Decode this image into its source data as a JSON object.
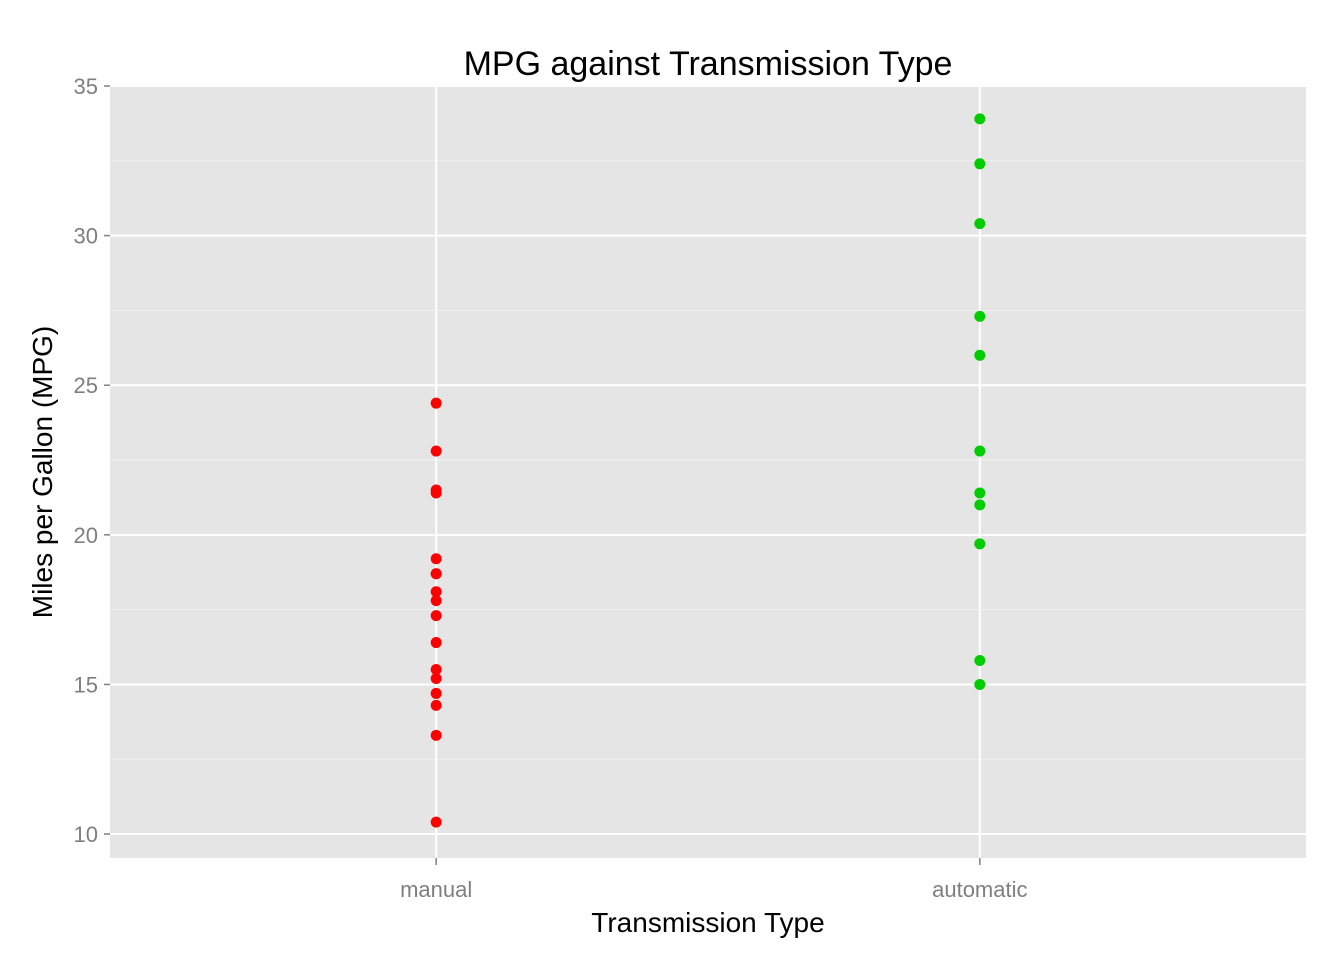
{
  "chart_data": {
    "type": "scatter",
    "title": "MPG against Transmission Type",
    "xlabel": "Transmission Type",
    "ylabel": "Miles per Gallon (MPG)",
    "categories": [
      "manual",
      "automatic"
    ],
    "ylim": [
      9.2,
      35
    ],
    "yticks": [
      10,
      15,
      20,
      25,
      30,
      35
    ],
    "grid": true,
    "legend": "none",
    "panel_background": "#e5e5e5",
    "grid_color": "#ffffff",
    "series": [
      {
        "category": "manual",
        "color": "#ff0000",
        "values": [
          24.4,
          22.8,
          21.5,
          21.4,
          19.2,
          18.7,
          18.7,
          18.1,
          17.8,
          17.3,
          16.4,
          15.5,
          15.2,
          14.7,
          14.3,
          13.3,
          10.4
        ]
      },
      {
        "category": "automatic",
        "color": "#00cd00",
        "values": [
          33.9,
          32.4,
          30.4,
          27.3,
          26.0,
          22.8,
          21.4,
          21.0,
          19.7,
          15.8,
          15.0
        ]
      }
    ]
  }
}
